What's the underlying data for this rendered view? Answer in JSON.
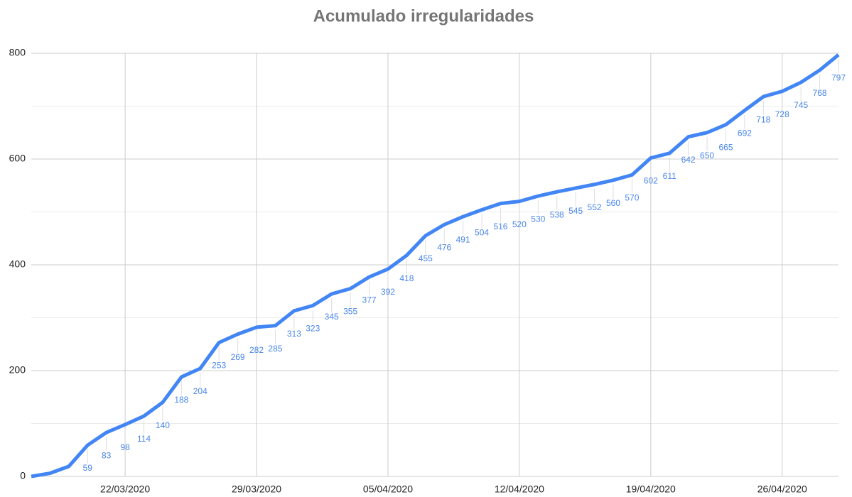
{
  "chart_data": {
    "type": "line",
    "title": "Acumulado irregularidades",
    "categories": [
      null,
      null,
      null,
      null,
      null,
      "22/03/2020",
      null,
      null,
      null,
      null,
      null,
      null,
      "29/03/2020",
      null,
      null,
      null,
      null,
      null,
      null,
      "05/04/2020",
      null,
      null,
      null,
      null,
      null,
      null,
      "12/04/2020",
      null,
      null,
      null,
      null,
      null,
      null,
      "19/04/2020",
      null,
      null,
      null,
      null,
      null,
      null,
      "26/04/2020",
      null,
      null,
      null
    ],
    "series": [
      {
        "name": "Acumulado irregularidades",
        "color": "#4285f4",
        "values": [
          0,
          6,
          19,
          59,
          83,
          98,
          114,
          140,
          188,
          204,
          253,
          269,
          282,
          285,
          313,
          323,
          345,
          355,
          377,
          392,
          418,
          455,
          476,
          491,
          504,
          516,
          520,
          530,
          538,
          545,
          552,
          560,
          570,
          602,
          611,
          642,
          650,
          665,
          692,
          718,
          728,
          745,
          768,
          797
        ],
        "value_labels": [
          null,
          null,
          null,
          "59",
          "83",
          "98",
          "114",
          "140",
          "188",
          "204",
          "253",
          "269",
          "282",
          "285",
          "313",
          "323",
          "345",
          "355",
          "377",
          "392",
          "418",
          "455",
          "476",
          "491",
          "504",
          "516",
          "520",
          "530",
          "538",
          "545",
          "552",
          "560",
          "570",
          "602",
          "611",
          "642",
          "650",
          "665",
          "692",
          "718",
          "728",
          "745",
          "768",
          "797"
        ]
      }
    ],
    "ylim": [
      0,
      800
    ],
    "yticks": [
      0,
      200,
      400,
      600,
      800
    ],
    "yminor": [
      100,
      300,
      500,
      700
    ],
    "grid": true
  }
}
